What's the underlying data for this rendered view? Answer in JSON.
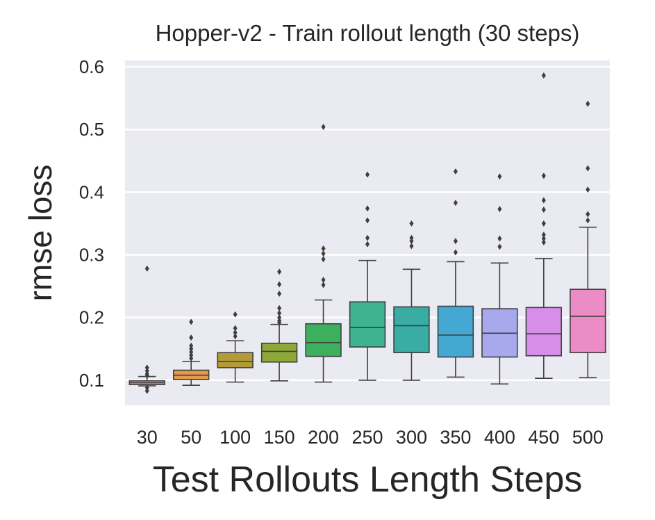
{
  "chart_data": {
    "type": "box",
    "title": "Hopper-v2 - Train rollout length (30 steps)",
    "xlabel": "Test Rollouts Length Steps",
    "ylabel": "rmse loss",
    "ylim": [
      0.06,
      0.61
    ],
    "yticks": [
      "0.1",
      "0.2",
      "0.3",
      "0.4",
      "0.5",
      "0.6"
    ],
    "grid": true,
    "categories": [
      "30",
      "50",
      "100",
      "150",
      "200",
      "250",
      "300",
      "350",
      "400",
      "450",
      "500"
    ],
    "colors": [
      "#e8a09a",
      "#e39a4d",
      "#b39b3a",
      "#8fa83a",
      "#3db05e",
      "#3db38f",
      "#39ada3",
      "#44a8d2",
      "#a7a9ec",
      "#d68ee8",
      "#ec8cc6"
    ],
    "boxes": [
      {
        "whislo": 0.091,
        "q1": 0.093,
        "med": 0.096,
        "q3": 0.099,
        "whishi": 0.106,
        "fliers": [
          0.278,
          0.12,
          0.115,
          0.11,
          0.107,
          0.088,
          0.083
        ]
      },
      {
        "whislo": 0.092,
        "q1": 0.101,
        "med": 0.108,
        "q3": 0.116,
        "whishi": 0.13,
        "fliers": [
          0.193,
          0.168,
          0.155,
          0.15,
          0.145,
          0.14,
          0.135
        ]
      },
      {
        "whislo": 0.097,
        "q1": 0.12,
        "med": 0.13,
        "q3": 0.144,
        "whishi": 0.163,
        "fliers": [
          0.205,
          0.183,
          0.176,
          0.17
        ]
      },
      {
        "whislo": 0.099,
        "q1": 0.129,
        "med": 0.146,
        "q3": 0.159,
        "whishi": 0.189,
        "fliers": [
          0.273,
          0.253,
          0.238,
          0.215,
          0.207,
          0.2,
          0.195,
          0.192
        ]
      },
      {
        "whislo": 0.097,
        "q1": 0.138,
        "med": 0.16,
        "q3": 0.19,
        "whishi": 0.228,
        "fliers": [
          0.504,
          0.31,
          0.302,
          0.293,
          0.26,
          0.252
        ]
      },
      {
        "whislo": 0.1,
        "q1": 0.153,
        "med": 0.184,
        "q3": 0.225,
        "whishi": 0.291,
        "fliers": [
          0.428,
          0.374,
          0.355,
          0.327,
          0.317
        ]
      },
      {
        "whislo": 0.1,
        "q1": 0.144,
        "med": 0.187,
        "q3": 0.217,
        "whishi": 0.277,
        "fliers": [
          0.35,
          0.327,
          0.322,
          0.314
        ]
      },
      {
        "whislo": 0.105,
        "q1": 0.137,
        "med": 0.172,
        "q3": 0.218,
        "whishi": 0.289,
        "fliers": [
          0.433,
          0.383,
          0.322,
          0.304
        ]
      },
      {
        "whislo": 0.094,
        "q1": 0.137,
        "med": 0.175,
        "q3": 0.214,
        "whishi": 0.287,
        "fliers": [
          0.425,
          0.373,
          0.326,
          0.313
        ]
      },
      {
        "whislo": 0.103,
        "q1": 0.139,
        "med": 0.174,
        "q3": 0.216,
        "whishi": 0.294,
        "fliers": [
          0.586,
          0.426,
          0.387,
          0.372,
          0.35,
          0.332,
          0.326,
          0.32
        ]
      },
      {
        "whislo": 0.104,
        "q1": 0.144,
        "med": 0.202,
        "q3": 0.245,
        "whishi": 0.344,
        "fliers": [
          0.541,
          0.438,
          0.404,
          0.365,
          0.355
        ]
      }
    ]
  }
}
